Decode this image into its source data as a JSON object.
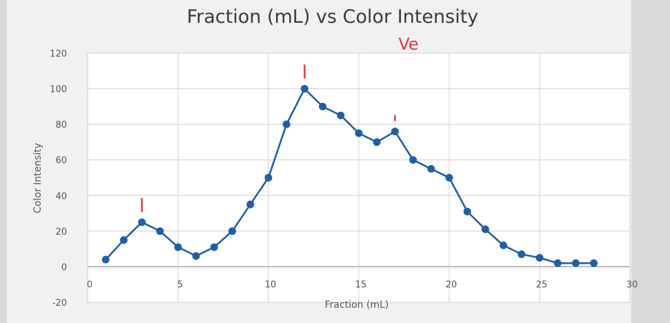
{
  "chart_data": {
    "type": "line",
    "title": "Fraction (mL) vs Color Intensity",
    "xlabel": "Fraction (mL)",
    "ylabel": "Color Intensity",
    "xlim": [
      0,
      30
    ],
    "ylim": [
      -20,
      120
    ],
    "xticks": [
      0,
      5,
      10,
      15,
      20,
      25,
      30
    ],
    "yticks": [
      -20,
      0,
      20,
      40,
      60,
      80,
      100,
      120
    ],
    "grid": true,
    "legend": "none",
    "series_color": "#1f5fa8",
    "annotation_color": "#e23a3a",
    "annotation_text": "Ve",
    "peak_marks_at_x": [
      3,
      12,
      17
    ],
    "x": [
      1,
      2,
      3,
      4,
      5,
      6,
      7,
      8,
      9,
      10,
      11,
      12,
      13,
      14,
      15,
      16,
      17,
      18,
      19,
      20,
      21,
      22,
      23,
      24,
      25,
      26,
      27,
      28
    ],
    "values": [
      4,
      15,
      25,
      20,
      11,
      6,
      11,
      20,
      35,
      50,
      80,
      100,
      90,
      85,
      75,
      70,
      76,
      60,
      55,
      50,
      31,
      21,
      12,
      7,
      5,
      2,
      2,
      2
    ]
  }
}
